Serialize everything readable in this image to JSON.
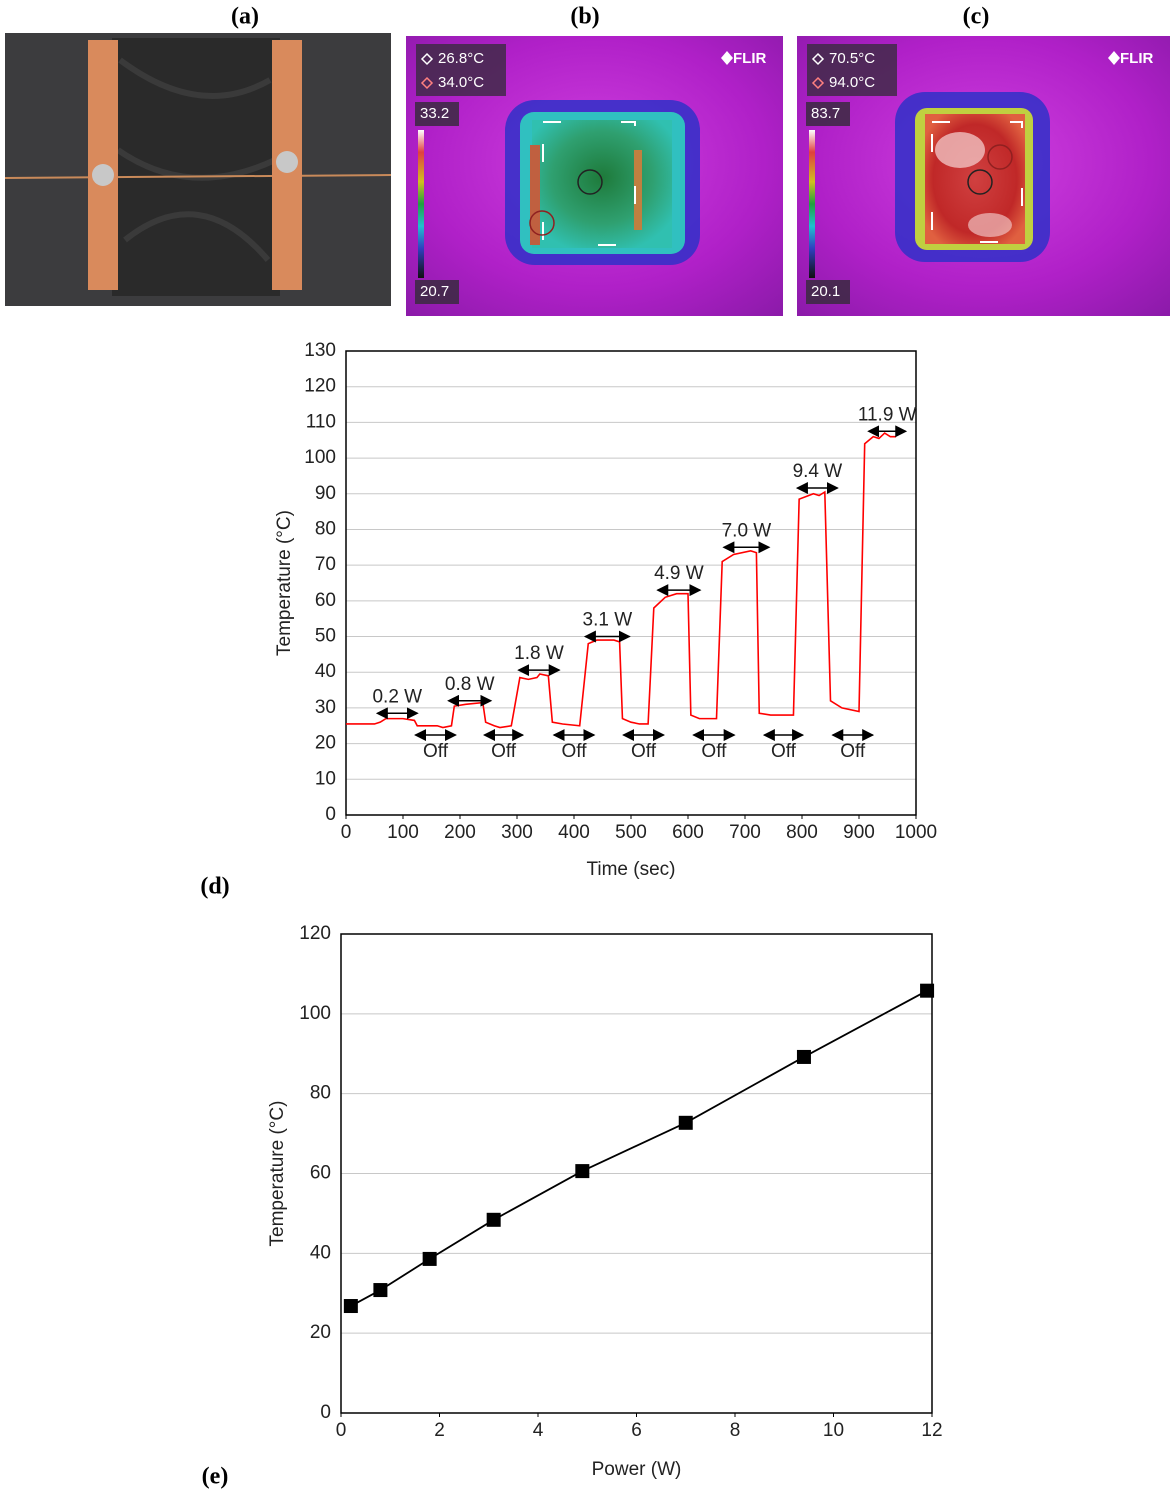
{
  "photo": {
    "label": "(a)"
  },
  "thermal_images": [
    {
      "label": "(b)",
      "readings": [
        "26.8°C",
        "34.0°C"
      ],
      "scale_max": "33.2",
      "scale_min": "20.7",
      "brand": "FLIR"
    },
    {
      "label": "(c)",
      "readings": [
        "70.5°C",
        "94.0°C"
      ],
      "scale_max": "83.7",
      "scale_min": "20.1",
      "brand": "FLIR"
    }
  ],
  "chart_data": [
    {
      "type": "line",
      "panel_label": "(d)",
      "x_label": "Time (sec)",
      "y_label": "Temperature (°C)",
      "color": "#ff0000",
      "grid": true,
      "xlim": [
        0,
        1000
      ],
      "xticks": [
        0,
        100,
        200,
        300,
        400,
        500,
        600,
        700,
        800,
        900,
        1000
      ],
      "ylim": [
        0,
        130
      ],
      "yticks": [
        0,
        10,
        20,
        30,
        40,
        50,
        60,
        70,
        80,
        90,
        100,
        110,
        120,
        130
      ],
      "x": [
        0,
        50,
        60,
        70,
        100,
        120,
        125,
        140,
        160,
        170,
        185,
        190,
        210,
        240,
        245,
        260,
        270,
        290,
        305,
        320,
        335,
        340,
        355,
        362,
        380,
        410,
        425,
        440,
        470,
        480,
        485,
        500,
        515,
        530,
        540,
        560,
        580,
        600,
        605,
        620,
        640,
        650,
        660,
        680,
        710,
        720,
        725,
        745,
        770,
        785,
        795,
        820,
        830,
        840,
        850,
        870,
        900,
        910,
        925,
        935,
        945,
        955,
        965
      ],
      "values": [
        25.5,
        25.5,
        26,
        27,
        27,
        26.5,
        25,
        25,
        25,
        24.5,
        25,
        30.5,
        31,
        31.5,
        26,
        25,
        24.5,
        25,
        38.5,
        38,
        38.5,
        39.5,
        39,
        26,
        25.5,
        25,
        48,
        49,
        49,
        48.5,
        27,
        26,
        25.5,
        25.5,
        58,
        61,
        62,
        62,
        28,
        27,
        27,
        27,
        71,
        73,
        74,
        73.5,
        28.5,
        28,
        28,
        28,
        88.5,
        90,
        89.5,
        90.5,
        32,
        30,
        29,
        104,
        106,
        105.5,
        107,
        106,
        106
      ],
      "annotations": [
        {
          "text": "0.2 W",
          "x": [
            55,
            125
          ],
          "y": 28.5,
          "label_side": "above"
        },
        {
          "text": "0.8 W",
          "x": [
            180,
            254
          ],
          "y": 32,
          "label_side": "above"
        },
        {
          "text": "1.8 W",
          "x": [
            303,
            374
          ],
          "y": 40.6,
          "label_side": "above"
        },
        {
          "text": "3.1 W",
          "x": [
            420,
            497
          ],
          "y": 50,
          "label_side": "above"
        },
        {
          "text": "4.9 W",
          "x": [
            547,
            621
          ],
          "y": 63,
          "label_side": "above"
        },
        {
          "text": "7.0 W",
          "x": [
            663,
            742
          ],
          "y": 75,
          "label_side": "above"
        },
        {
          "text": "9.4 W",
          "x": [
            792,
            862
          ],
          "y": 91.6,
          "label_side": "above"
        },
        {
          "text": "11.9 W",
          "x": [
            917,
            982
          ],
          "y": 107.5,
          "label_side": "above"
        },
        {
          "text": "Off",
          "x": [
            122,
            192
          ],
          "y": 22.4,
          "label_side": "below"
        },
        {
          "text": "Off",
          "x": [
            243,
            310
          ],
          "y": 22.4,
          "label_side": "below"
        },
        {
          "text": "Off",
          "x": [
            365,
            435
          ],
          "y": 22.4,
          "label_side": "below"
        },
        {
          "text": "Off",
          "x": [
            487,
            557
          ],
          "y": 22.4,
          "label_side": "below"
        },
        {
          "text": "Off",
          "x": [
            610,
            681
          ],
          "y": 22.4,
          "label_side": "below"
        },
        {
          "text": "Off",
          "x": [
            734,
            801
          ],
          "y": 22.4,
          "label_side": "below"
        },
        {
          "text": "Off",
          "x": [
            854,
            924
          ],
          "y": 22.4,
          "label_side": "below"
        }
      ]
    },
    {
      "type": "line",
      "panel_label": "(e)",
      "x_label": "Power (W)",
      "y_label": "Temperature (°C)",
      "color": "#000000",
      "marker": "square",
      "grid": true,
      "xlim": [
        0,
        12
      ],
      "xticks": [
        0,
        2,
        4,
        6,
        8,
        10,
        12
      ],
      "ylim": [
        0,
        120
      ],
      "yticks": [
        0,
        20,
        40,
        60,
        80,
        100,
        120
      ],
      "x": [
        0.2,
        0.8,
        1.8,
        3.1,
        4.9,
        7.0,
        9.4,
        11.9
      ],
      "values": [
        26.8,
        30.8,
        38.6,
        48.4,
        60.6,
        72.7,
        89.2,
        105.8
      ]
    }
  ]
}
